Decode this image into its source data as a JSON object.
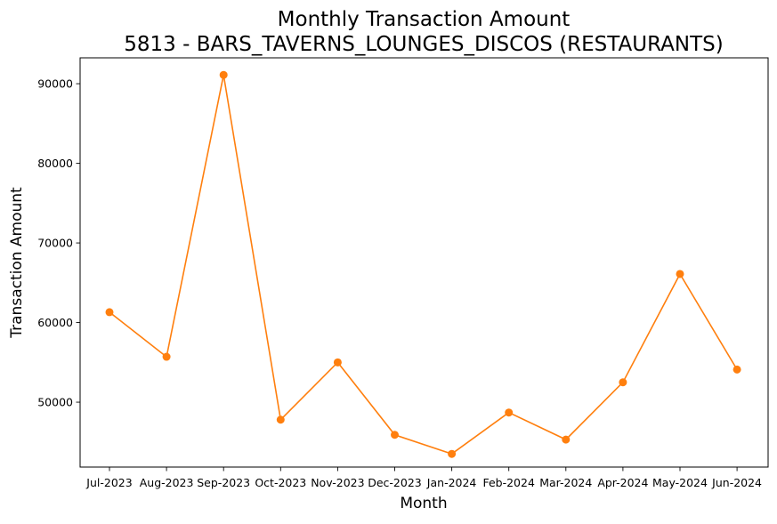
{
  "chart_data": {
    "type": "line",
    "title": "Monthly Transaction Amount",
    "subtitle": "5813 - BARS_TAVERNS_LOUNGES_DISCOS (RESTAURANTS)",
    "xlabel": "Month",
    "ylabel": "Transaction Amount",
    "categories": [
      "Jul-2023",
      "Aug-2023",
      "Sep-2023",
      "Oct-2023",
      "Nov-2023",
      "Dec-2023",
      "Jan-2024",
      "Feb-2024",
      "Mar-2024",
      "Apr-2024",
      "May-2024",
      "Jun-2024"
    ],
    "series": [
      {
        "values": [
          61300,
          55700,
          91100,
          47800,
          55000,
          45900,
          43500,
          48700,
          45300,
          52500,
          66100,
          54100
        ],
        "color": "#ff7f0e",
        "marker": "circle"
      }
    ],
    "ylim": [
      41850,
      93250
    ],
    "yticks": [
      50000,
      60000,
      70000,
      80000,
      90000
    ],
    "ytick_labels": [
      "50000",
      "60000",
      "70000",
      "80000",
      "90000"
    ],
    "grid": false,
    "legend": "none"
  }
}
